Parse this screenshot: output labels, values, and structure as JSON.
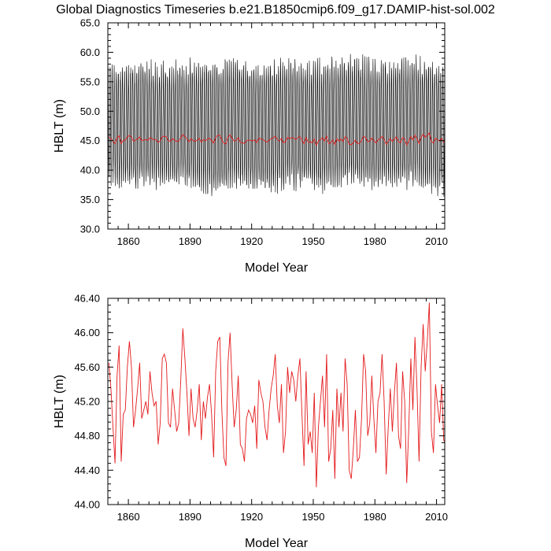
{
  "title": "Global Diagnostics Timeseries b.e21.B1850cmip6.f09_g17.DAMIP-hist-sol.002",
  "colors": {
    "monthly": "#000000",
    "annual": "#e41a1c",
    "axes": "#000000"
  },
  "chart_data": [
    {
      "type": "line",
      "xlabel": "Model Year",
      "ylabel": "HBLT (m)",
      "xlim": [
        1850,
        2014
      ],
      "ylim": [
        30.0,
        65.0
      ],
      "xticks": [
        1860,
        1890,
        1920,
        1950,
        1980,
        2010
      ],
      "xtick_labels": [
        "1860",
        "1890",
        "1920",
        "1950",
        "1980",
        "2010"
      ],
      "yticks": [
        30,
        35,
        40,
        45,
        50,
        55,
        60,
        65
      ],
      "ytick_labels": [
        "30.0",
        "35.0",
        "40.0",
        "45.0",
        "50.0",
        "55.0",
        "60.0",
        "65.0"
      ],
      "grid": false,
      "series": [
        {
          "color": "#000000",
          "monthly_envelope": {
            "x": [
              1850,
              1860,
              1870,
              1880,
              1890,
              1900,
              1910,
              1920,
              1930,
              1940,
              1950,
              1960,
              1970,
              1980,
              1990,
              2000,
              2010,
              2014
            ],
            "max": [
              57.5,
              58.0,
              58.5,
              58.3,
              58.8,
              58.5,
              59.0,
              58.5,
              58.8,
              59.0,
              58.6,
              59.2,
              59.5,
              58.8,
              59.0,
              59.3,
              58.5,
              58.5
            ],
            "min": [
              37.5,
              36.8,
              37.2,
              36.5,
              37.0,
              35.0,
              37.0,
              36.5,
              36.0,
              36.8,
              36.2,
              36.5,
              37.0,
              36.5,
              36.8,
              37.0,
              36.0,
              35.5
            ],
            "samples_per_year": 12
          }
        },
        {
          "color": "#e41a1c",
          "values_ref": "annual"
        }
      ]
    },
    {
      "type": "line",
      "xlabel": "Model Year",
      "ylabel": "HBLT (m)",
      "xlim": [
        1850,
        2014
      ],
      "ylim": [
        44.0,
        46.4
      ],
      "xticks": [
        1860,
        1890,
        1920,
        1950,
        1980,
        2010
      ],
      "xtick_labels": [
        "1860",
        "1890",
        "1920",
        "1950",
        "1980",
        "2010"
      ],
      "yticks": [
        44.0,
        44.4,
        44.8,
        45.2,
        45.6,
        46.0,
        46.4
      ],
      "ytick_labels": [
        "44.00",
        "44.40",
        "44.80",
        "45.20",
        "45.60",
        "46.00",
        "46.40"
      ],
      "grid": false,
      "series": [
        {
          "color": "#e41a1c",
          "values_ref": "annual"
        }
      ]
    }
  ],
  "annual": {
    "x_start": 1850,
    "values": [
      45.65,
      45.35,
      44.9,
      44.48,
      45.5,
      45.85,
      44.5,
      45.05,
      45.1,
      45.6,
      45.9,
      45.6,
      44.9,
      45.1,
      45.35,
      45.65,
      45.0,
      45.1,
      45.2,
      45.05,
      45.55,
      45.3,
      45.15,
      45.2,
      44.7,
      44.95,
      45.7,
      45.75,
      45.65,
      44.95,
      44.9,
      45.35,
      45.1,
      44.85,
      44.95,
      45.45,
      46.05,
      45.7,
      45.3,
      44.8,
      45.35,
      45.0,
      44.9,
      45.1,
      45.4,
      44.75,
      45.2,
      45.0,
      45.25,
      45.4,
      45.05,
      44.55,
      45.55,
      45.9,
      45.95,
      45.1,
      44.55,
      44.45,
      45.65,
      46.0,
      45.4,
      44.9,
      45.1,
      45.5,
      44.7,
      44.65,
      44.5,
      45.0,
      45.1,
      45.05,
      44.95,
      45.15,
      44.65,
      45.45,
      45.3,
      45.2,
      44.9,
      44.75,
      45.1,
      45.35,
      45.5,
      45.75,
      45.15,
      44.95,
      45.4,
      44.6,
      44.85,
      45.6,
      45.3,
      45.55,
      45.45,
      45.2,
      45.5,
      45.7,
      45.05,
      44.45,
      45.55,
      44.7,
      44.85,
      44.6,
      45.3,
      44.2,
      44.9,
      45.2,
      45.5,
      44.9,
      45.75,
      44.5,
      44.65,
      45.1,
      44.3,
      45.35,
      44.9,
      45.3,
      44.85,
      45.7,
      45.4,
      44.4,
      44.3,
      44.65,
      45.1,
      44.5,
      44.55,
      45.0,
      45.75,
      45.55,
      44.8,
      44.95,
      45.5,
      45.0,
      44.6,
      45.2,
      45.3,
      45.75,
      45.2,
      44.35,
      44.9,
      45.35,
      44.85,
      45.3,
      45.65,
      44.8,
      44.65,
      45.55,
      45.2,
      44.25,
      44.9,
      45.7,
      45.1,
      45.95,
      45.35,
      44.5,
      45.6,
      46.1,
      45.55,
      45.9,
      46.35,
      44.85,
      44.6,
      45.4,
      45.15,
      44.95,
      45.4,
      44.75,
      44.7,
      45.0
    ]
  }
}
